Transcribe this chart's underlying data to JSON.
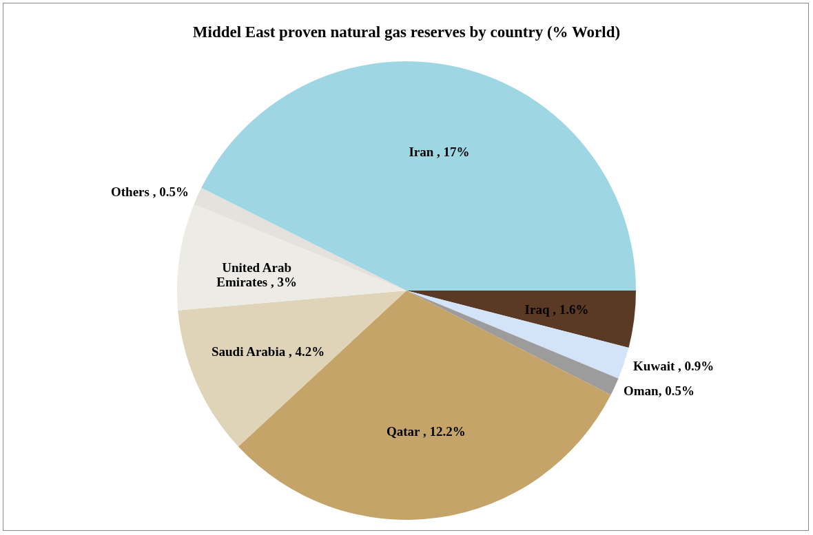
{
  "chart_data": {
    "type": "pie",
    "title": "Middel East proven natural gas reserves by country (% World)",
    "categories": [
      "Iraq",
      "Kuwait",
      "Oman",
      "Qatar",
      "Saudi Arabia",
      "United Arab Emirates",
      "Others",
      "Iran"
    ],
    "values": [
      1.6,
      0.9,
      0.5,
      12.2,
      4.2,
      3,
      0.5,
      17
    ],
    "colors": [
      "#5a3a24",
      "#d4e4f8",
      "#9c9c9c",
      "#c4a468",
      "#e0d4b8",
      "#ecebe6",
      "#e4e2dc",
      "#9fd6e4"
    ],
    "value_labels": [
      " , 1.6%",
      " , 0.9%",
      ", 0.5%",
      " , 12.2%",
      " , 4.2%",
      " , 3%",
      " , 0.5%",
      " , 17%"
    ],
    "legend": false
  }
}
